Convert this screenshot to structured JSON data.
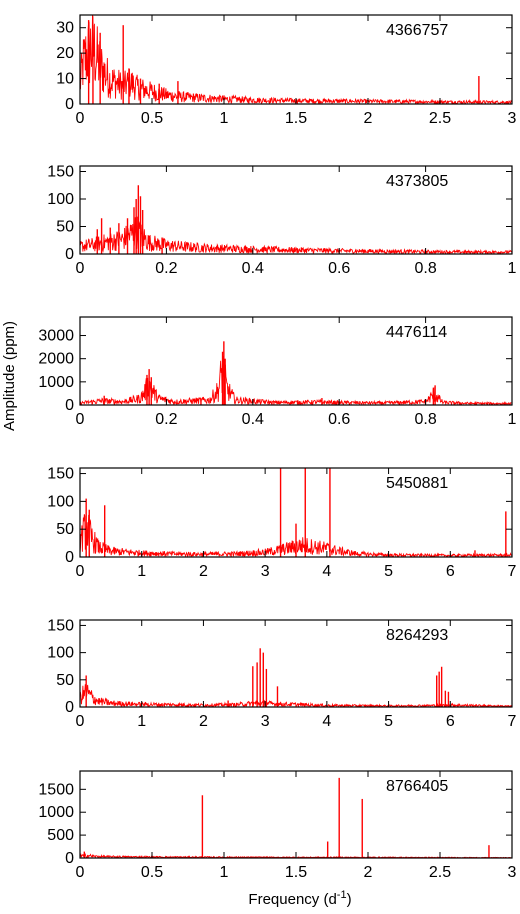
{
  "chart_data": {
    "type": "line",
    "ylabel": "Amplitude (ppm)",
    "xlabel_main": "Frequency (d",
    "xlabel_sup": "-1",
    "xlabel_end": ")",
    "line_color": "#ff0000",
    "panels": [
      {
        "label": "4366757",
        "xlim": [
          0,
          3
        ],
        "ylim": [
          0,
          35
        ],
        "xticks": [
          0,
          0.5,
          1,
          1.5,
          2,
          2.5,
          3
        ],
        "xtick_labels": [
          "0",
          "0.5",
          "1",
          "1.5",
          "2",
          "2.5",
          "3"
        ],
        "yticks": [
          0,
          10,
          20,
          30
        ],
        "ytick_labels": [
          "0",
          "10",
          "20",
          "30"
        ],
        "series": [
          {
            "envelope": [
              [
                0,
                10
              ],
              [
                0.02,
                22
              ],
              [
                0.05,
                28
              ],
              [
                0.08,
                32
              ],
              [
                0.1,
                30
              ],
              [
                0.12,
                25
              ],
              [
                0.15,
                20
              ],
              [
                0.2,
                14
              ],
              [
                0.25,
                12
              ],
              [
                0.3,
                10
              ],
              [
                0.35,
                12
              ],
              [
                0.4,
                9
              ],
              [
                0.5,
                7
              ],
              [
                0.6,
                5
              ],
              [
                0.7,
                4
              ],
              [
                0.8,
                3.5
              ],
              [
                1.0,
                2.8
              ],
              [
                1.2,
                2.2
              ],
              [
                1.5,
                1.8
              ],
              [
                2.0,
                1.5
              ],
              [
                2.5,
                1.2
              ],
              [
                3.0,
                1.0
              ]
            ],
            "peaks": [
              [
                0.06,
                33
              ],
              [
                0.09,
                31
              ],
              [
                0.14,
                28
              ],
              [
                0.3,
                31
              ],
              [
                0.34,
                14
              ],
              [
                0.42,
                10
              ],
              [
                0.55,
                8
              ],
              [
                0.68,
                9
              ],
              [
                2.77,
                11
              ]
            ]
          }
        ]
      },
      {
        "label": "4373805",
        "xlim": [
          0,
          1
        ],
        "ylim": [
          0,
          160
        ],
        "xticks": [
          0,
          0.2,
          0.4,
          0.6,
          0.8,
          1
        ],
        "xtick_labels": [
          "0",
          "0.2",
          "0.4",
          "0.6",
          "0.8",
          "1"
        ],
        "yticks": [
          0,
          50,
          100,
          150
        ],
        "ytick_labels": [
          "0",
          "50",
          "100",
          "150"
        ],
        "series": [
          {
            "envelope": [
              [
                0,
                20
              ],
              [
                0.03,
                24
              ],
              [
                0.06,
                30
              ],
              [
                0.1,
                38
              ],
              [
                0.13,
                60
              ],
              [
                0.16,
                30
              ],
              [
                0.2,
                22
              ],
              [
                0.25,
                18
              ],
              [
                0.3,
                15
              ],
              [
                0.4,
                12
              ],
              [
                0.5,
                10
              ],
              [
                0.6,
                8
              ],
              [
                0.7,
                7
              ],
              [
                0.8,
                6
              ],
              [
                0.9,
                5
              ],
              [
                1.0,
                5
              ]
            ],
            "peaks": [
              [
                0.04,
                45
              ],
              [
                0.05,
                65
              ],
              [
                0.07,
                48
              ],
              [
                0.09,
                56
              ],
              [
                0.11,
                65
              ],
              [
                0.125,
                85
              ],
              [
                0.13,
                100
              ],
              [
                0.135,
                125
              ],
              [
                0.14,
                105
              ],
              [
                0.145,
                80
              ],
              [
                0.19,
                30
              ]
            ]
          }
        ]
      },
      {
        "label": "4476114",
        "xlim": [
          0,
          1
        ],
        "ylim": [
          0,
          3800
        ],
        "xticks": [
          0,
          0.2,
          0.4,
          0.6,
          0.8,
          1
        ],
        "xtick_labels": [
          "0",
          "0.2",
          "0.4",
          "0.6",
          "0.8",
          "1"
        ],
        "yticks": [
          0,
          1000,
          2000,
          3000
        ],
        "ytick_labels": [
          "0",
          "1000",
          "2000",
          "3000"
        ],
        "series": [
          {
            "envelope": [
              [
                0,
                120
              ],
              [
                0.05,
                250
              ],
              [
                0.1,
                200
              ],
              [
                0.14,
                400
              ],
              [
                0.16,
                1200
              ],
              [
                0.18,
                400
              ],
              [
                0.22,
                200
              ],
              [
                0.3,
                300
              ],
              [
                0.32,
                900
              ],
              [
                0.33,
                2200
              ],
              [
                0.34,
                1000
              ],
              [
                0.36,
                300
              ],
              [
                0.45,
                150
              ],
              [
                0.55,
                180
              ],
              [
                0.6,
                150
              ],
              [
                0.7,
                120
              ],
              [
                0.8,
                200
              ],
              [
                0.82,
                650
              ],
              [
                0.84,
                150
              ],
              [
                0.9,
                100
              ],
              [
                1.0,
                80
              ]
            ],
            "peaks": [
              [
                0.155,
                1300
              ],
              [
                0.16,
                1550
              ],
              [
                0.165,
                1200
              ],
              [
                0.33,
                2300
              ],
              [
                0.333,
                2750
              ],
              [
                0.336,
                2000
              ],
              [
                0.056,
                400
              ],
              [
                0.28,
                250
              ],
              [
                0.56,
                300
              ],
              [
                0.818,
                750
              ],
              [
                0.822,
                850
              ]
            ]
          }
        ]
      },
      {
        "label": "5450881",
        "xlim": [
          0,
          7
        ],
        "ylim": [
          0,
          160
        ],
        "xticks": [
          0,
          1,
          2,
          3,
          4,
          5,
          6,
          7
        ],
        "xtick_labels": [
          "0",
          "1",
          "2",
          "3",
          "4",
          "5",
          "6",
          "7"
        ],
        "yticks": [
          0,
          50,
          100,
          150
        ],
        "ytick_labels": [
          "0",
          "50",
          "100",
          "150"
        ],
        "series": [
          {
            "envelope": [
              [
                0,
                40
              ],
              [
                0.1,
                75
              ],
              [
                0.2,
                45
              ],
              [
                0.3,
                25
              ],
              [
                0.5,
                15
              ],
              [
                1.0,
                10
              ],
              [
                1.5,
                8
              ],
              [
                2.0,
                7
              ],
              [
                2.5,
                8
              ],
              [
                3.0,
                12
              ],
              [
                3.3,
                20
              ],
              [
                3.6,
                30
              ],
              [
                3.7,
                28
              ],
              [
                4.0,
                22
              ],
              [
                4.2,
                15
              ],
              [
                4.5,
                8
              ],
              [
                5.0,
                5
              ],
              [
                6.0,
                4
              ],
              [
                7.0,
                5
              ]
            ],
            "peaks": [
              [
                0.1,
                105
              ],
              [
                0.15,
                85
              ],
              [
                0.4,
                93
              ],
              [
                3.25,
                160
              ],
              [
                3.65,
                160
              ],
              [
                4.05,
                160
              ],
              [
                3.5,
                60
              ],
              [
                6.4,
                12
              ],
              [
                6.9,
                82
              ]
            ]
          }
        ]
      },
      {
        "label": "8264293",
        "xlim": [
          0,
          7
        ],
        "ylim": [
          0,
          160
        ],
        "xticks": [
          0,
          1,
          2,
          3,
          4,
          5,
          6,
          7
        ],
        "xtick_labels": [
          "0",
          "1",
          "2",
          "3",
          "4",
          "5",
          "6",
          "7"
        ],
        "yticks": [
          0,
          50,
          100,
          150
        ],
        "ytick_labels": [
          "0",
          "50",
          "100",
          "150"
        ],
        "series": [
          {
            "envelope": [
              [
                0,
                25
              ],
              [
                0.1,
                40
              ],
              [
                0.2,
                25
              ],
              [
                0.3,
                15
              ],
              [
                0.5,
                10
              ],
              [
                1.0,
                7
              ],
              [
                1.5,
                6
              ],
              [
                2.0,
                5
              ],
              [
                2.5,
                6
              ],
              [
                2.9,
                10
              ],
              [
                3.2,
                8
              ],
              [
                4.0,
                4
              ],
              [
                5.0,
                3
              ],
              [
                5.8,
                4
              ],
              [
                6.0,
                5
              ],
              [
                7.0,
                2
              ]
            ],
            "peaks": [
              [
                0.1,
                58
              ],
              [
                2.4,
                12
              ],
              [
                2.8,
                75
              ],
              [
                2.87,
                82
              ],
              [
                2.92,
                108
              ],
              [
                2.97,
                100
              ],
              [
                3.02,
                70
              ],
              [
                3.2,
                38
              ],
              [
                5.78,
                58
              ],
              [
                5.82,
                65
              ],
              [
                5.86,
                74
              ],
              [
                5.92,
                30
              ],
              [
                5.97,
                28
              ]
            ]
          }
        ]
      },
      {
        "label": "8766405",
        "xlim": [
          0,
          3
        ],
        "ylim": [
          0,
          1900
        ],
        "xticks": [
          0,
          0.5,
          1,
          1.5,
          2,
          2.5,
          3
        ],
        "xtick_labels": [
          "0",
          "0.5",
          "1",
          "1.5",
          "2",
          "2.5",
          "3"
        ],
        "yticks": [
          0,
          500,
          1000,
          1500
        ],
        "ytick_labels": [
          "0",
          "500",
          "1000",
          "1500"
        ],
        "series": [
          {
            "envelope": [
              [
                0,
                60
              ],
              [
                0.05,
                80
              ],
              [
                0.1,
                50
              ],
              [
                0.2,
                40
              ],
              [
                0.5,
                30
              ],
              [
                1.0,
                25
              ],
              [
                1.5,
                20
              ],
              [
                2.0,
                20
              ],
              [
                2.5,
                15
              ],
              [
                3.0,
                10
              ]
            ],
            "peaks": [
              [
                0.03,
                140
              ],
              [
                0.85,
                1370
              ],
              [
                1.72,
                360
              ],
              [
                1.8,
                1750
              ],
              [
                1.96,
                1290
              ],
              [
                2.84,
                280
              ]
            ]
          }
        ]
      }
    ]
  }
}
